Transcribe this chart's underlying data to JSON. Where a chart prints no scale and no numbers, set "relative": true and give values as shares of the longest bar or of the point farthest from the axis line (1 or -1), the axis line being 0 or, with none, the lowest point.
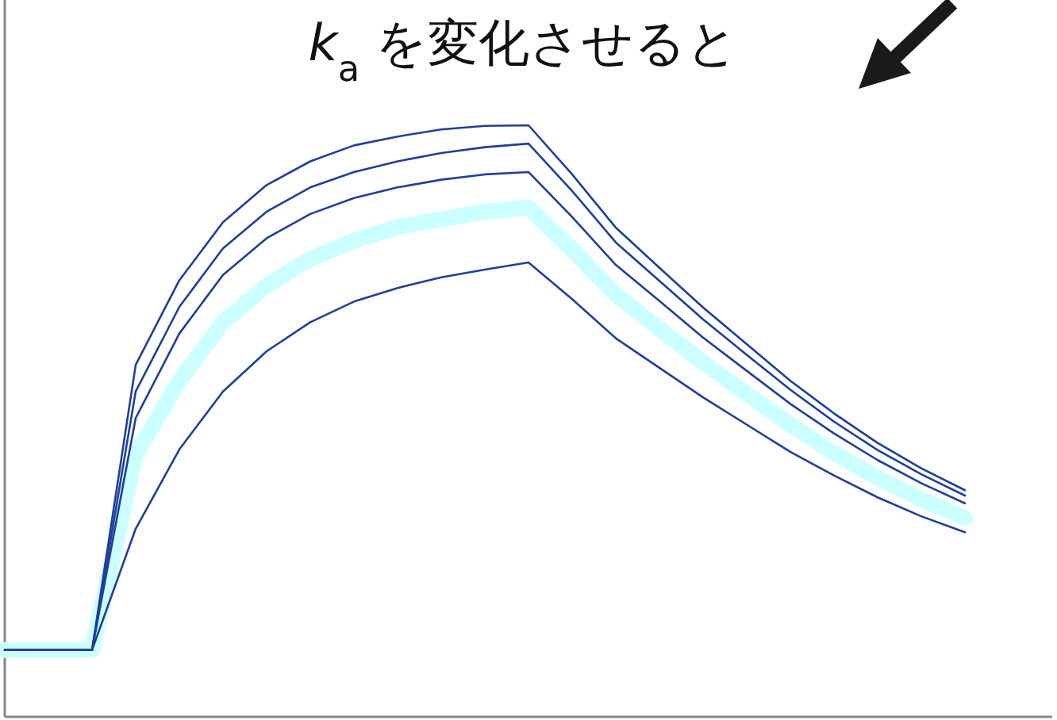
{
  "chart_data": {
    "type": "line",
    "title": "*k*$_{a}$ を変化させると",
    "relative": true,
    "categories": [
      null,
      null,
      null,
      null,
      null,
      null,
      null,
      null,
      null,
      null,
      null,
      null,
      null,
      null,
      null,
      null,
      null,
      null,
      null,
      null,
      null,
      null,
      null
    ],
    "series": [
      {
        "color": "#1f3f9a",
        "values": [
          0.113,
          0.113,
          0.113,
          0.595,
          0.738,
          0.836,
          0.899,
          0.939,
          0.966,
          0.981,
          0.993,
          0.999,
          1.0,
          0.917,
          0.827,
          0.759,
          0.692,
          0.63,
          0.568,
          0.513,
          0.463,
          0.42,
          0.383
        ]
      },
      {
        "color": "#1f3f9a",
        "values": [
          0.113,
          0.113,
          0.113,
          0.55,
          0.693,
          0.792,
          0.854,
          0.895,
          0.921,
          0.939,
          0.953,
          0.963,
          0.969,
          0.889,
          0.802,
          0.737,
          0.672,
          0.612,
          0.553,
          0.499,
          0.451,
          0.41,
          0.374
        ]
      },
      {
        "color": "#1f3f9a",
        "values": [
          0.113,
          0.113,
          0.113,
          0.505,
          0.648,
          0.747,
          0.809,
          0.85,
          0.877,
          0.895,
          0.908,
          0.917,
          0.921,
          0.845,
          0.764,
          0.703,
          0.641,
          0.585,
          0.529,
          0.479,
          0.434,
          0.395,
          0.361
        ]
      },
      {
        "color": "#ccffff",
        "values": [
          0.113,
          0.113,
          0.113,
          0.443,
          0.568,
          0.667,
          0.729,
          0.774,
          0.805,
          0.828,
          0.841,
          0.854,
          0.861,
          0.79,
          0.714,
          0.656,
          0.599,
          0.546,
          0.494,
          0.446,
          0.404,
          0.368,
          0.336
        ]
      },
      {
        "color": "#1f3f9a",
        "values": [
          0.113,
          0.113,
          0.113,
          0.318,
          0.452,
          0.55,
          0.618,
          0.667,
          0.702,
          0.725,
          0.743,
          0.756,
          0.768,
          0.706,
          0.64,
          0.59,
          0.54,
          0.494,
          0.448,
          0.408,
          0.371,
          0.339,
          0.312
        ]
      }
    ]
  }
}
